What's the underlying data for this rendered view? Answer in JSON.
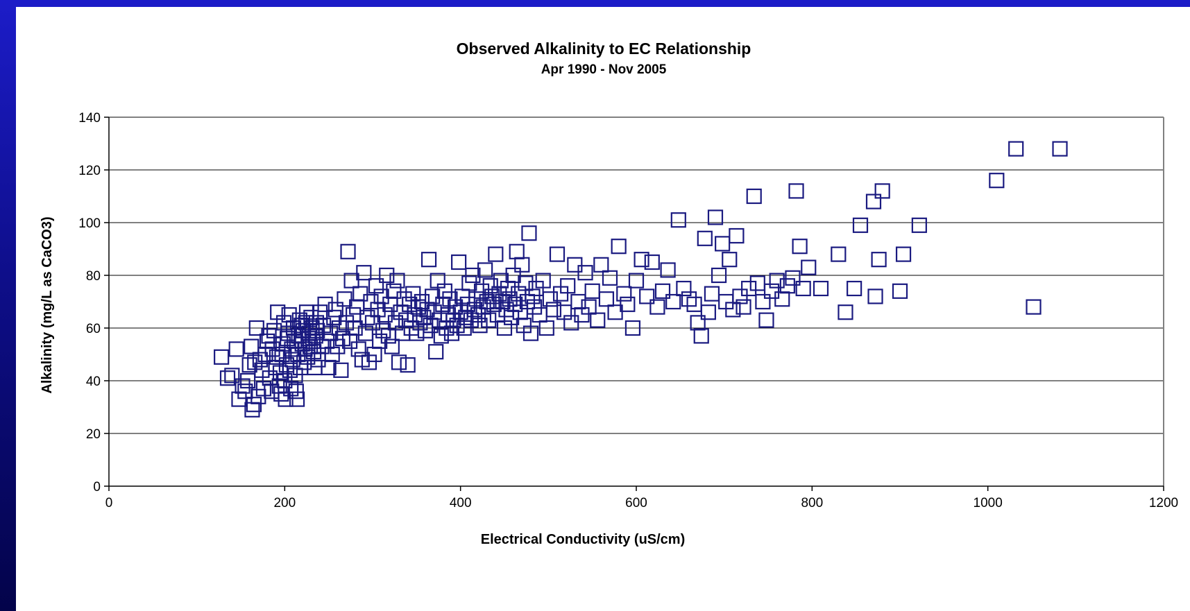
{
  "chart_data": {
    "type": "scatter",
    "title": "Observed Alkalinity to EC Relationship",
    "subtitle": "Apr 1990 - Nov 2005",
    "xlabel": "Electrical Conductivity (uS/cm)",
    "ylabel": "Alkalinity (mg/L as CaCO3)",
    "xlim": [
      0,
      1200
    ],
    "ylim": [
      0,
      140
    ],
    "xticks": [
      0,
      200,
      400,
      600,
      800,
      1000,
      1200
    ],
    "yticks": [
      0,
      20,
      40,
      60,
      80,
      100,
      120,
      140
    ],
    "grid": "horizontal",
    "marker": "open-square",
    "marker_color": "#1a1a80",
    "points": [
      [
        128,
        49
      ],
      [
        135,
        41
      ],
      [
        140,
        42
      ],
      [
        145,
        52
      ],
      [
        148,
        33
      ],
      [
        152,
        38
      ],
      [
        155,
        36
      ],
      [
        158,
        40
      ],
      [
        160,
        46
      ],
      [
        162,
        53
      ],
      [
        163,
        29
      ],
      [
        165,
        31
      ],
      [
        166,
        47
      ],
      [
        168,
        60
      ],
      [
        170,
        34
      ],
      [
        172,
        48
      ],
      [
        174,
        44
      ],
      [
        176,
        37
      ],
      [
        178,
        50
      ],
      [
        180,
        55
      ],
      [
        182,
        57
      ],
      [
        183,
        41
      ],
      [
        185,
        36
      ],
      [
        186,
        52
      ],
      [
        188,
        59
      ],
      [
        190,
        45
      ],
      [
        191,
        49
      ],
      [
        192,
        66
      ],
      [
        194,
        38
      ],
      [
        195,
        43
      ],
      [
        196,
        35
      ],
      [
        197,
        50
      ],
      [
        198,
        54
      ],
      [
        199,
        62
      ],
      [
        200,
        40
      ],
      [
        201,
        33
      ],
      [
        202,
        46
      ],
      [
        203,
        56
      ],
      [
        204,
        58
      ],
      [
        205,
        65
      ],
      [
        206,
        44
      ],
      [
        207,
        37
      ],
      [
        208,
        52
      ],
      [
        209,
        48
      ],
      [
        210,
        60
      ],
      [
        211,
        55
      ],
      [
        212,
        42
      ],
      [
        213,
        36
      ],
      [
        214,
        33
      ],
      [
        215,
        50
      ],
      [
        216,
        57
      ],
      [
        217,
        63
      ],
      [
        218,
        45
      ],
      [
        219,
        61
      ],
      [
        220,
        54
      ],
      [
        221,
        59
      ],
      [
        222,
        47
      ],
      [
        223,
        52
      ],
      [
        224,
        62
      ],
      [
        225,
        66
      ],
      [
        226,
        49
      ],
      [
        227,
        56
      ],
      [
        228,
        58
      ],
      [
        229,
        53
      ],
      [
        230,
        64
      ],
      [
        231,
        60
      ],
      [
        232,
        55
      ],
      [
        233,
        51
      ],
      [
        234,
        45
      ],
      [
        235,
        57
      ],
      [
        236,
        62
      ],
      [
        237,
        59
      ],
      [
        238,
        48
      ],
      [
        240,
        66
      ],
      [
        242,
        53
      ],
      [
        244,
        61
      ],
      [
        246,
        69
      ],
      [
        248,
        55
      ],
      [
        250,
        45
      ],
      [
        252,
        58
      ],
      [
        254,
        50
      ],
      [
        256,
        64
      ],
      [
        258,
        67
      ],
      [
        260,
        53
      ],
      [
        262,
        60
      ],
      [
        264,
        44
      ],
      [
        266,
        56
      ],
      [
        268,
        71
      ],
      [
        270,
        62
      ],
      [
        272,
        89
      ],
      [
        274,
        55
      ],
      [
        276,
        78
      ],
      [
        278,
        65
      ],
      [
        280,
        60
      ],
      [
        282,
        68
      ],
      [
        284,
        52
      ],
      [
        286,
        73
      ],
      [
        288,
        48
      ],
      [
        290,
        81
      ],
      [
        292,
        58
      ],
      [
        294,
        64
      ],
      [
        296,
        47
      ],
      [
        298,
        70
      ],
      [
        300,
        62
      ],
      [
        302,
        50
      ],
      [
        304,
        76
      ],
      [
        306,
        67
      ],
      [
        308,
        55
      ],
      [
        310,
        72
      ],
      [
        312,
        59
      ],
      [
        314,
        65
      ],
      [
        316,
        80
      ],
      [
        318,
        57
      ],
      [
        320,
        69
      ],
      [
        322,
        53
      ],
      [
        324,
        74
      ],
      [
        326,
        62
      ],
      [
        328,
        78
      ],
      [
        330,
        47
      ],
      [
        332,
        66
      ],
      [
        334,
        58
      ],
      [
        336,
        71
      ],
      [
        338,
        63
      ],
      [
        340,
        46
      ],
      [
        342,
        69
      ],
      [
        344,
        60
      ],
      [
        346,
        73
      ],
      [
        348,
        65
      ],
      [
        350,
        58
      ],
      [
        352,
        68
      ],
      [
        354,
        62
      ],
      [
        356,
        70
      ],
      [
        358,
        64
      ],
      [
        360,
        59
      ],
      [
        362,
        67
      ],
      [
        364,
        86
      ],
      [
        366,
        61
      ],
      [
        368,
        72
      ],
      [
        370,
        66
      ],
      [
        372,
        51
      ],
      [
        374,
        78
      ],
      [
        376,
        63
      ],
      [
        378,
        57
      ],
      [
        380,
        69
      ],
      [
        382,
        74
      ],
      [
        384,
        60
      ],
      [
        386,
        65
      ],
      [
        388,
        71
      ],
      [
        390,
        58
      ],
      [
        392,
        63
      ],
      [
        394,
        68
      ],
      [
        396,
        61
      ],
      [
        398,
        85
      ],
      [
        400,
        66
      ],
      [
        402,
        72
      ],
      [
        404,
        60
      ],
      [
        406,
        64
      ],
      [
        408,
        69
      ],
      [
        410,
        77
      ],
      [
        412,
        63
      ],
      [
        414,
        80
      ],
      [
        416,
        67
      ],
      [
        418,
        71
      ],
      [
        420,
        65
      ],
      [
        422,
        61
      ],
      [
        424,
        74
      ],
      [
        426,
        68
      ],
      [
        428,
        82
      ],
      [
        430,
        70
      ],
      [
        432,
        63
      ],
      [
        434,
        76
      ],
      [
        436,
        72
      ],
      [
        438,
        69
      ],
      [
        440,
        88
      ],
      [
        442,
        65
      ],
      [
        444,
        73
      ],
      [
        446,
        78
      ],
      [
        448,
        70
      ],
      [
        450,
        60
      ],
      [
        452,
        67
      ],
      [
        454,
        75
      ],
      [
        456,
        71
      ],
      [
        458,
        64
      ],
      [
        460,
        80
      ],
      [
        462,
        69
      ],
      [
        464,
        89
      ],
      [
        466,
        73
      ],
      [
        468,
        66
      ],
      [
        470,
        84
      ],
      [
        472,
        61
      ],
      [
        474,
        77
      ],
      [
        476,
        70
      ],
      [
        478,
        96
      ],
      [
        480,
        58
      ],
      [
        482,
        72
      ],
      [
        484,
        68
      ],
      [
        486,
        75
      ],
      [
        490,
        65
      ],
      [
        494,
        78
      ],
      [
        498,
        60
      ],
      [
        502,
        71
      ],
      [
        506,
        67
      ],
      [
        510,
        88
      ],
      [
        514,
        73
      ],
      [
        518,
        66
      ],
      [
        522,
        76
      ],
      [
        526,
        62
      ],
      [
        530,
        84
      ],
      [
        534,
        70
      ],
      [
        538,
        65
      ],
      [
        542,
        81
      ],
      [
        546,
        68
      ],
      [
        550,
        74
      ],
      [
        556,
        63
      ],
      [
        560,
        84
      ],
      [
        566,
        71
      ],
      [
        570,
        79
      ],
      [
        576,
        66
      ],
      [
        580,
        91
      ],
      [
        586,
        73
      ],
      [
        590,
        69
      ],
      [
        596,
        60
      ],
      [
        600,
        78
      ],
      [
        606,
        86
      ],
      [
        612,
        72
      ],
      [
        618,
        85
      ],
      [
        624,
        68
      ],
      [
        630,
        74
      ],
      [
        636,
        82
      ],
      [
        642,
        70
      ],
      [
        648,
        101
      ],
      [
        654,
        75
      ],
      [
        660,
        71
      ],
      [
        666,
        69
      ],
      [
        670,
        62
      ],
      [
        674,
        57
      ],
      [
        678,
        94
      ],
      [
        682,
        66
      ],
      [
        686,
        73
      ],
      [
        690,
        102
      ],
      [
        694,
        80
      ],
      [
        698,
        92
      ],
      [
        702,
        70
      ],
      [
        706,
        86
      ],
      [
        710,
        67
      ],
      [
        714,
        95
      ],
      [
        718,
        72
      ],
      [
        722,
        68
      ],
      [
        728,
        75
      ],
      [
        734,
        110
      ],
      [
        738,
        77
      ],
      [
        744,
        70
      ],
      [
        748,
        63
      ],
      [
        754,
        74
      ],
      [
        760,
        78
      ],
      [
        766,
        71
      ],
      [
        772,
        76
      ],
      [
        778,
        79
      ],
      [
        782,
        112
      ],
      [
        786,
        91
      ],
      [
        790,
        75
      ],
      [
        796,
        83
      ],
      [
        810,
        75
      ],
      [
        830,
        88
      ],
      [
        838,
        66
      ],
      [
        848,
        75
      ],
      [
        855,
        99
      ],
      [
        870,
        108
      ],
      [
        872,
        72
      ],
      [
        876,
        86
      ],
      [
        880,
        112
      ],
      [
        900,
        74
      ],
      [
        904,
        88
      ],
      [
        922,
        99
      ],
      [
        1010,
        116
      ],
      [
        1032,
        128
      ],
      [
        1052,
        68
      ],
      [
        1082,
        128
      ]
    ]
  }
}
